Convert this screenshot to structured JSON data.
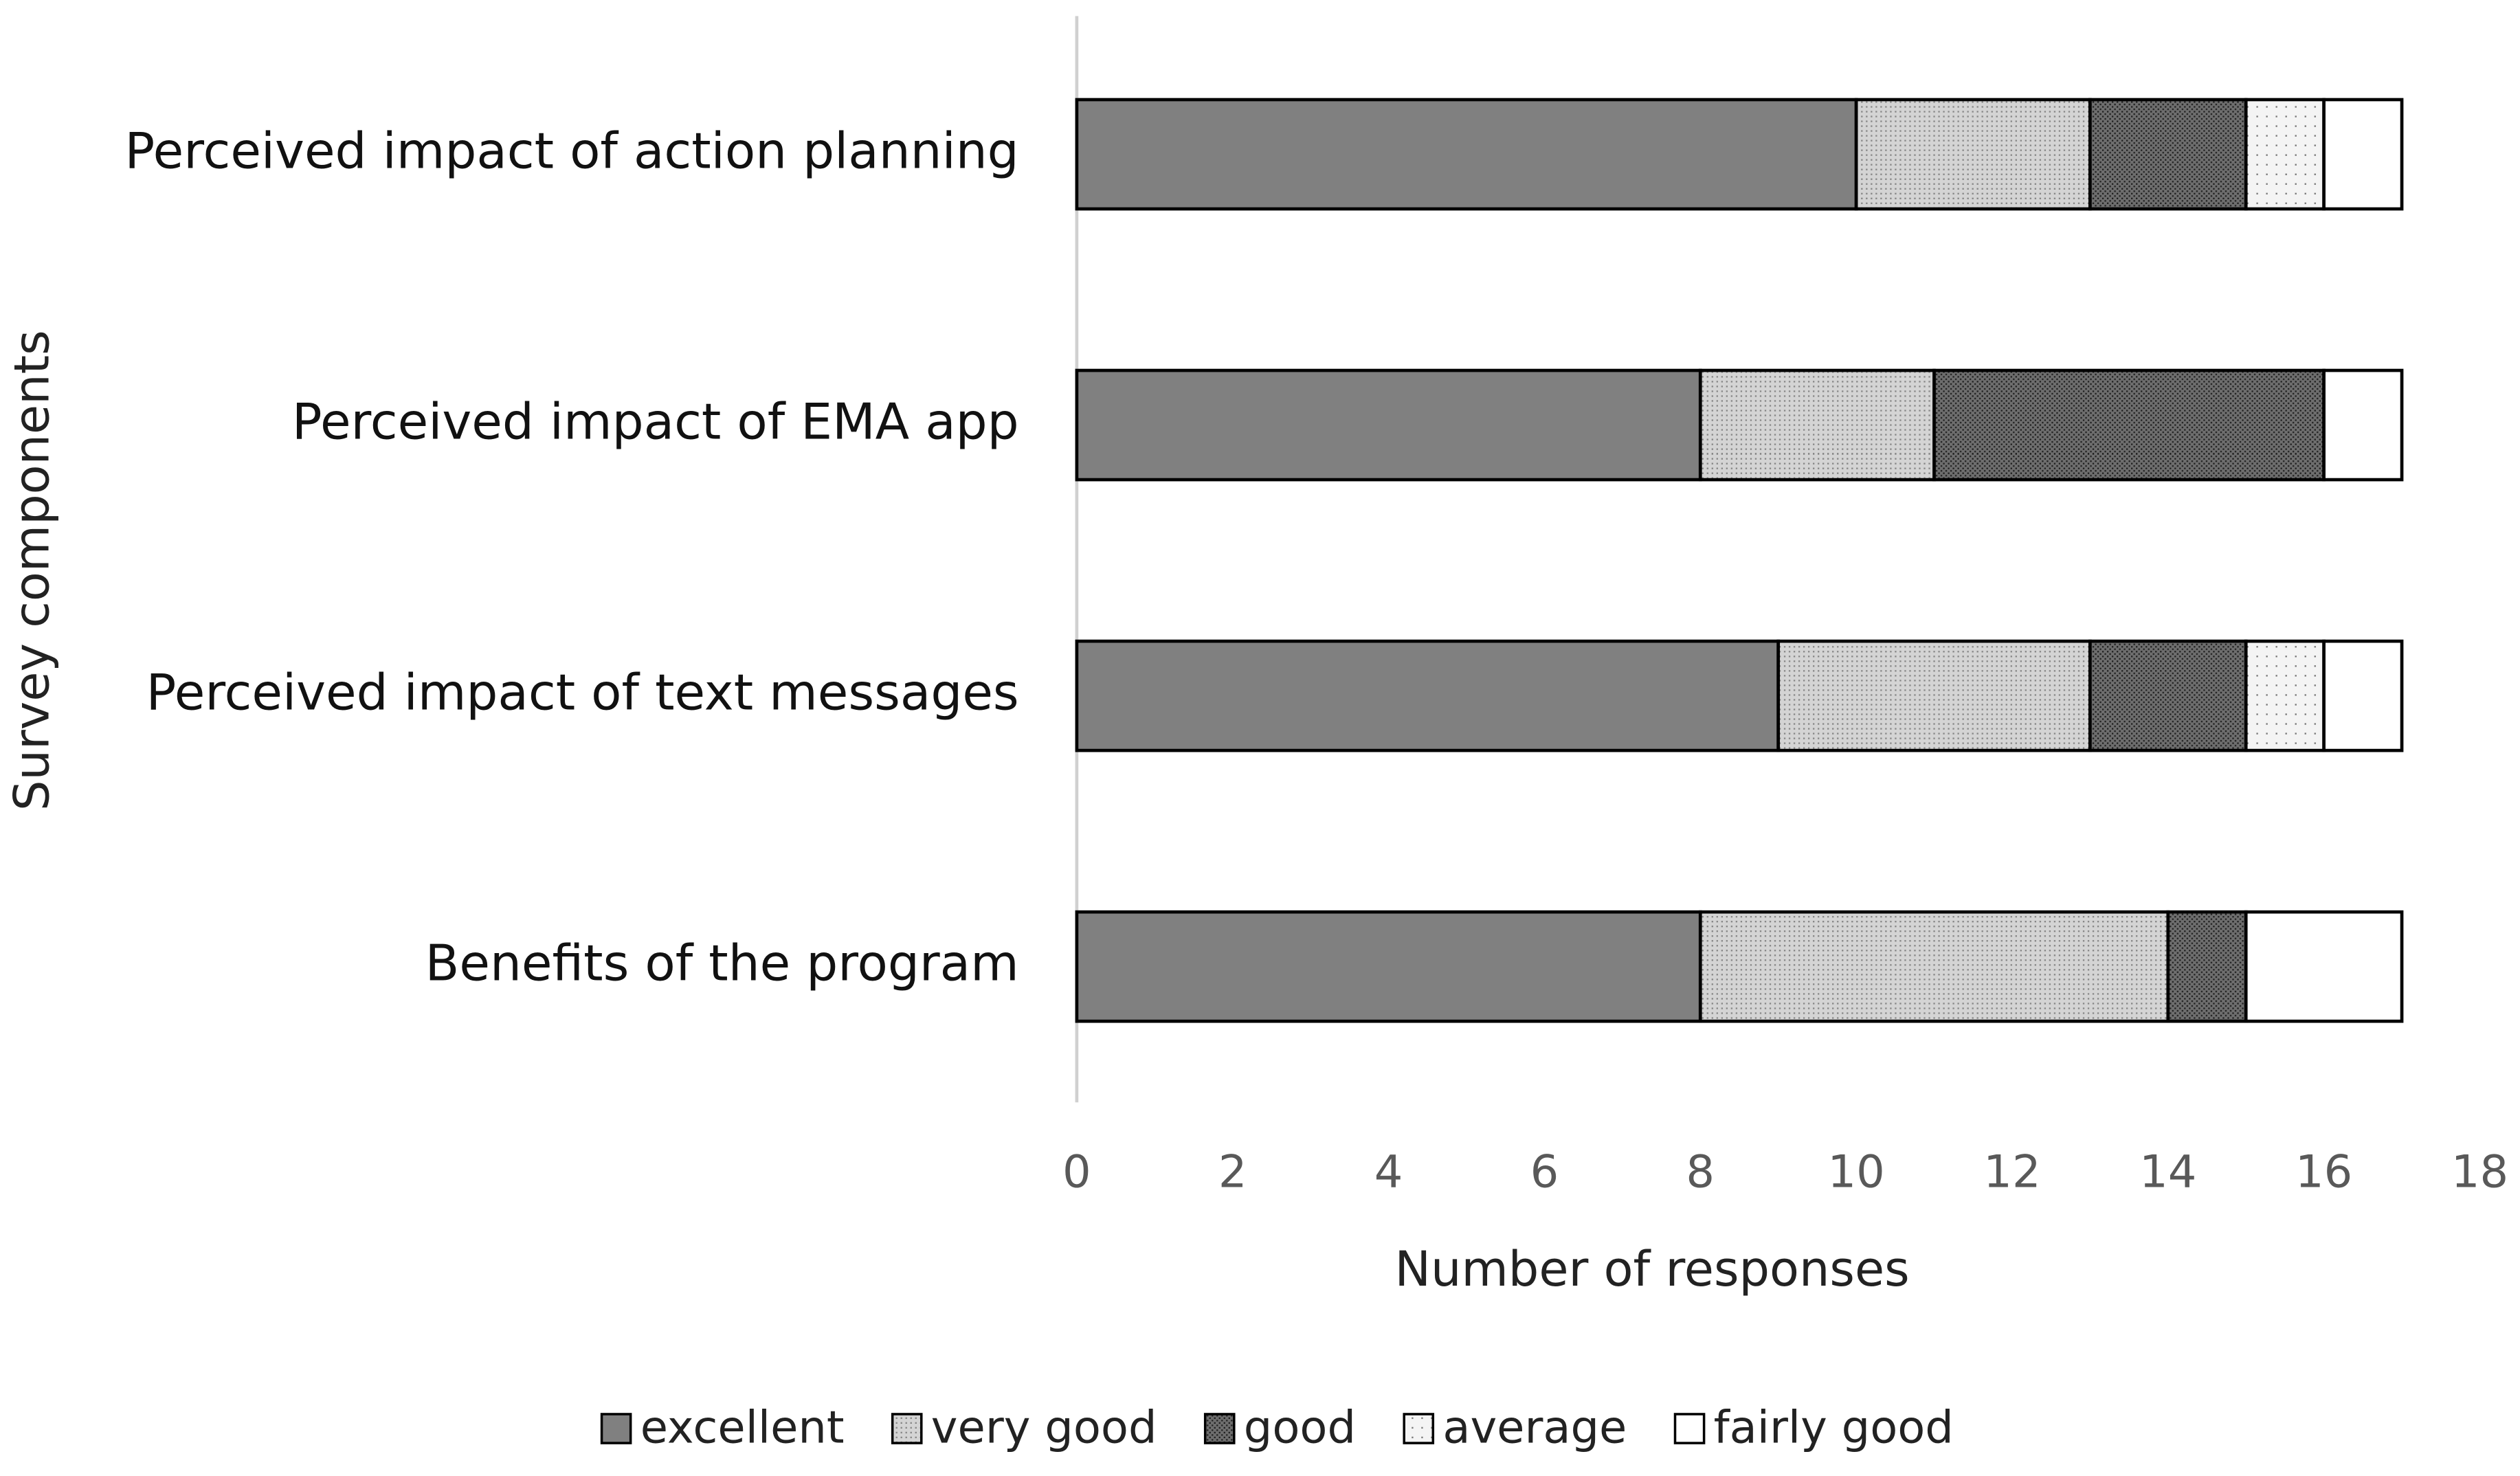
{
  "chart_data": {
    "type": "stacked-barh",
    "xlabel": "Number of responses",
    "ylabel": "Survey components",
    "categories": [
      "Perceived impact of action planning",
      "Perceived impact of EMA app",
      "Perceived impact of text messages",
      "Benefits of the program"
    ],
    "series": [
      {
        "name": "excellent",
        "color": "#808080",
        "values": [
          10,
          8,
          9,
          8
        ]
      },
      {
        "name": "very good",
        "color": "#d4d4d4",
        "values": [
          3,
          3,
          4,
          6
        ]
      },
      {
        "name": "good",
        "color": "#6e6e6e",
        "values": [
          2,
          5,
          2,
          1
        ]
      },
      {
        "name": "average",
        "color": "#f4f4f4",
        "values": [
          1,
          0,
          1,
          0
        ]
      },
      {
        "name": "fairly good",
        "color": "#ffffff",
        "values": [
          1,
          1,
          1,
          2
        ]
      }
    ],
    "xlim": [
      0,
      18
    ],
    "xticks": [
      0,
      2,
      4,
      6,
      8,
      10,
      12,
      14,
      16,
      18
    ],
    "grid": false,
    "legend": "bottom"
  }
}
